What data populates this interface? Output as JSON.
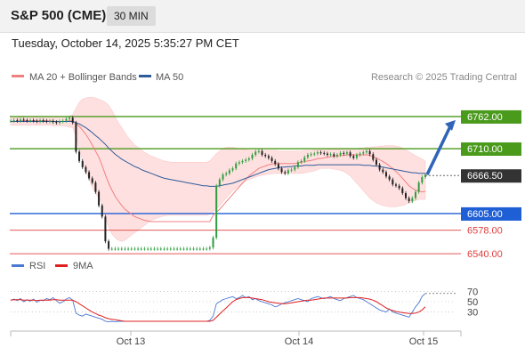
{
  "header": {
    "title": "S&P 500 (CME)",
    "timeframe": "30 MIN"
  },
  "timestamp": "Tuesday, October 14, 2025 5:35:27 PM CET",
  "legend": {
    "items": [
      {
        "label": "MA 20 + Bollinger Bands",
        "color": "#f08080"
      },
      {
        "label": "MA 50",
        "color": "#2e5c9a"
      }
    ],
    "credit": "Research © 2025 Trading Central"
  },
  "chart_data": [
    {
      "type": "candlestick",
      "ylim": [
        6530,
        6795
      ],
      "x_tick_labels": [
        "Oct 13",
        "Oct 14",
        "Oct 15"
      ],
      "colors": {
        "up": "#2e9e3e",
        "down": "#222222",
        "resistance": "#4a9a1c",
        "pivot": "#1f5fd6",
        "support": "#e04040",
        "ma50": "#2e5c9a",
        "bands": "#ffe0e0"
      },
      "levels": [
        {
          "label": "6762.00",
          "value": 6762,
          "kind": "resistance"
        },
        {
          "label": "6710.00",
          "value": 6710,
          "kind": "resistance"
        },
        {
          "label": "6666.50",
          "value": 6666.5,
          "kind": "last"
        },
        {
          "label": "6605.00",
          "value": 6605,
          "kind": "pivot"
        },
        {
          "label": "6578.00",
          "value": 6578,
          "kind": "support"
        },
        {
          "label": "6540.00",
          "value": 6540,
          "kind": "support"
        }
      ],
      "forecast_target": 6762,
      "close": [
        6755,
        6756,
        6755,
        6757,
        6756,
        6755,
        6756,
        6755,
        6754,
        6756,
        6755,
        6754,
        6755,
        6753,
        6752,
        6754,
        6755,
        6758,
        6760,
        6752,
        6705,
        6690,
        6680,
        6672,
        6662,
        6655,
        6640,
        6618,
        6600,
        6560,
        6548,
        6548,
        6548,
        6548,
        6548,
        6548,
        6548,
        6548,
        6548,
        6548,
        6548,
        6548,
        6548,
        6548,
        6548,
        6548,
        6548,
        6548,
        6548,
        6548,
        6548,
        6548,
        6548,
        6548,
        6548,
        6548,
        6548,
        6548,
        6548,
        6548,
        6548,
        6550,
        6566,
        6650,
        6660,
        6668,
        6670,
        6675,
        6678,
        6686,
        6688,
        6690,
        6692,
        6694,
        6700,
        6705,
        6706,
        6700,
        6698,
        6695,
        6690,
        6685,
        6678,
        6672,
        6670,
        6675,
        6676,
        6680,
        6688,
        6690,
        6696,
        6700,
        6701,
        6702,
        6704,
        6703,
        6702,
        6700,
        6701,
        6698,
        6700,
        6703,
        6702,
        6704,
        6698,
        6695,
        6700,
        6702,
        6704,
        6706,
        6701,
        6692,
        6684,
        6676,
        6672,
        6665,
        6660,
        6652,
        6650,
        6646,
        6638,
        6630,
        6625,
        6630,
        6640,
        6655,
        6664,
        6668
      ],
      "ma20": [
        6754,
        6754,
        6754,
        6755,
        6755,
        6755,
        6755,
        6755,
        6755,
        6755,
        6755,
        6755,
        6755,
        6754,
        6754,
        6754,
        6754,
        6754,
        6755,
        6755,
        6751,
        6746,
        6740,
        6733,
        6725,
        6716,
        6706,
        6696,
        6683,
        6668,
        6654,
        6643,
        6633,
        6625,
        6618,
        6612,
        6608,
        6604,
        6600,
        6598,
        6596,
        6594,
        6593,
        6592,
        6592,
        6592,
        6592,
        6592,
        6592,
        6592,
        6592,
        6592,
        6592,
        6592,
        6592,
        6592,
        6592,
        6592,
        6592,
        6592,
        6592,
        6592,
        6602,
        6607,
        6612,
        6618,
        6624,
        6630,
        6636,
        6642,
        6648,
        6654,
        6660,
        6666,
        6670,
        6674,
        6678,
        6680,
        6682,
        6684,
        6685,
        6686,
        6686,
        6686,
        6686,
        6686,
        6686,
        6686,
        6687,
        6688,
        6689,
        6690,
        6691,
        6692,
        6694,
        6694,
        6695,
        6696,
        6697,
        6698,
        6698,
        6699,
        6699,
        6700,
        6700,
        6700,
        6700,
        6700,
        6700,
        6700,
        6699,
        6697,
        6695,
        6692,
        6689,
        6686,
        6682,
        6678,
        6673,
        6668,
        6662,
        6656,
        6650,
        6646,
        6643,
        6641,
        6640,
        6641
      ],
      "ma50": [
        6754,
        6754,
        6754,
        6754,
        6754,
        6754,
        6754,
        6754,
        6754,
        6754,
        6754,
        6754,
        6754,
        6754,
        6754,
        6754,
        6754,
        6754,
        6754,
        6754,
        6752,
        6750,
        6747,
        6744,
        6740,
        6736,
        6731,
        6727,
        6722,
        6717,
        6711,
        6706,
        6701,
        6697,
        6693,
        6690,
        6687,
        6684,
        6681,
        6679,
        6676,
        6674,
        6672,
        6670,
        6668,
        6666,
        6664,
        6662,
        6661,
        6660,
        6659,
        6658,
        6657,
        6656,
        6655,
        6654,
        6653,
        6652,
        6651,
        6650,
        6650,
        6649,
        6649,
        6649,
        6650,
        6651,
        6652,
        6653,
        6654,
        6656,
        6658,
        6660,
        6662,
        6664,
        6666,
        6668,
        6670,
        6672,
        6674,
        6676,
        6677,
        6678,
        6679,
        6680,
        6680,
        6681,
        6681,
        6682,
        6682,
        6682,
        6683,
        6683,
        6683,
        6683,
        6684,
        6684,
        6684,
        6684,
        6684,
        6684,
        6684,
        6684,
        6684,
        6684,
        6684,
        6684,
        6684,
        6684,
        6683,
        6683,
        6683,
        6682,
        6682,
        6681,
        6680,
        6679,
        6678,
        6677,
        6676,
        6675,
        6674,
        6673,
        6672,
        6671,
        6671,
        6670,
        6670,
        6670
      ],
      "band_upper": [
        6760,
        6760,
        6760,
        6761,
        6761,
        6761,
        6761,
        6761,
        6761,
        6761,
        6761,
        6761,
        6761,
        6761,
        6761,
        6761,
        6761,
        6762,
        6763,
        6765,
        6775,
        6785,
        6790,
        6792,
        6793,
        6793,
        6792,
        6790,
        6788,
        6785,
        6780,
        6772,
        6762,
        6752,
        6744,
        6736,
        6728,
        6722,
        6716,
        6712,
        6708,
        6704,
        6701,
        6698,
        6696,
        6694,
        6692,
        6690,
        6689,
        6688,
        6688,
        6688,
        6688,
        6688,
        6688,
        6688,
        6688,
        6688,
        6688,
        6688,
        6688,
        6690,
        6696,
        6702,
        6706,
        6710,
        6712,
        6712,
        6712,
        6711,
        6710,
        6709,
        6708,
        6707,
        6707,
        6707,
        6707,
        6707,
        6707,
        6707,
        6707,
        6707,
        6706,
        6706,
        6706,
        6706,
        6706,
        6706,
        6706,
        6706,
        6707,
        6707,
        6707,
        6708,
        6708,
        6708,
        6708,
        6708,
        6709,
        6709,
        6709,
        6709,
        6710,
        6710,
        6710,
        6710,
        6710,
        6711,
        6711,
        6712,
        6712,
        6713,
        6713,
        6714,
        6714,
        6715,
        6715,
        6715,
        6714,
        6713,
        6711,
        6708,
        6705,
        6702,
        6699,
        6696,
        6693,
        6690
      ],
      "band_lower": [
        6748,
        6748,
        6748,
        6748,
        6748,
        6748,
        6748,
        6748,
        6748,
        6748,
        6748,
        6748,
        6748,
        6747,
        6747,
        6747,
        6747,
        6746,
        6745,
        6744,
        6730,
        6710,
        6690,
        6674,
        6660,
        6648,
        6638,
        6630,
        6622,
        6600,
        6582,
        6572,
        6566,
        6562,
        6560,
        6562,
        6566,
        6570,
        6574,
        6578,
        6582,
        6586,
        6590,
        6594,
        6596,
        6598,
        6600,
        6601,
        6602,
        6602,
        6602,
        6602,
        6602,
        6602,
        6602,
        6602,
        6602,
        6602,
        6602,
        6602,
        6602,
        6604,
        6608,
        6612,
        6618,
        6624,
        6630,
        6636,
        6642,
        6646,
        6650,
        6654,
        6658,
        6660,
        6662,
        6664,
        6666,
        6667,
        6668,
        6669,
        6669,
        6670,
        6670,
        6670,
        6670,
        6670,
        6670,
        6670,
        6670,
        6670,
        6671,
        6672,
        6673,
        6674,
        6676,
        6678,
        6678,
        6678,
        6678,
        6677,
        6676,
        6675,
        6673,
        6670,
        6666,
        6660,
        6654,
        6648,
        6642,
        6636,
        6630,
        6626,
        6622,
        6620,
        6618,
        6617,
        6616,
        6616,
        6616,
        6617,
        6618,
        6620,
        6622,
        6624,
        6626,
        6628,
        6628,
        6628
      ]
    },
    {
      "type": "line",
      "title": "RSI",
      "series": [
        {
          "name": "RSI",
          "color": "#4b78d2",
          "values": [
            53,
            55,
            52,
            56,
            50,
            54,
            51,
            55,
            49,
            53,
            52,
            56,
            54,
            58,
            52,
            47,
            50,
            55,
            58,
            53,
            28,
            24,
            22,
            26,
            24,
            22,
            20,
            18,
            16,
            12,
            11,
            12,
            11,
            12,
            12,
            12,
            12,
            12,
            12,
            12,
            12,
            12,
            12,
            12,
            12,
            12,
            12,
            12,
            12,
            12,
            12,
            12,
            12,
            12,
            12,
            12,
            12,
            12,
            12,
            12,
            12,
            14,
            22,
            46,
            50,
            54,
            56,
            58,
            60,
            56,
            58,
            62,
            58,
            60,
            54,
            56,
            52,
            50,
            48,
            46,
            44,
            40,
            42,
            46,
            48,
            50,
            52,
            54,
            56,
            54,
            52,
            50,
            56,
            58,
            60,
            58,
            56,
            58,
            60,
            56,
            54,
            52,
            56,
            58,
            60,
            62,
            58,
            56,
            54,
            50,
            46,
            42,
            38,
            34,
            32,
            30,
            36,
            30,
            28,
            26,
            24,
            22,
            20,
            30,
            40,
            48,
            60,
            66
          ]
        },
        {
          "name": "9MA",
          "color": "#e02020",
          "values": [
            53,
            54,
            54,
            54,
            53,
            53,
            53,
            53,
            52,
            53,
            53,
            53,
            53,
            54,
            54,
            53,
            53,
            53,
            53,
            53,
            50,
            46,
            42,
            38,
            34,
            30,
            27,
            24,
            22,
            19,
            17,
            16,
            15,
            14,
            13,
            12,
            12,
            12,
            12,
            12,
            12,
            12,
            12,
            12,
            12,
            12,
            12,
            12,
            12,
            12,
            12,
            12,
            12,
            12,
            12,
            12,
            12,
            12,
            12,
            12,
            12,
            12,
            14,
            20,
            26,
            32,
            38,
            44,
            50,
            54,
            56,
            58,
            58,
            58,
            57,
            56,
            55,
            54,
            52,
            50,
            49,
            48,
            47,
            46,
            46,
            47,
            48,
            49,
            50,
            51,
            52,
            53,
            53,
            54,
            55,
            56,
            57,
            57,
            57,
            57,
            57,
            57,
            57,
            57,
            58,
            58,
            58,
            58,
            57,
            56,
            55,
            53,
            50,
            46,
            42,
            38,
            35,
            33,
            31,
            30,
            29,
            28,
            27,
            27,
            28,
            30,
            34,
            40
          ]
        }
      ],
      "ylim": [
        0,
        100
      ],
      "y_ticks": [
        70,
        50,
        30
      ],
      "x_tick_labels": [
        "Oct 13",
        "Oct 14",
        "Oct 15"
      ]
    }
  ]
}
